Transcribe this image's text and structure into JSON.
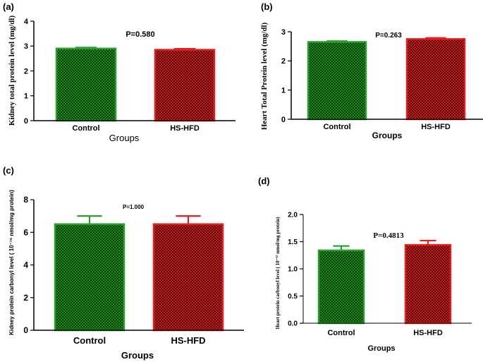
{
  "chart_data": [
    {
      "panel_label": "(a)",
      "type": "bar",
      "categories": [
        "Control",
        "HS-HFD"
      ],
      "values": [
        2.9,
        2.85
      ],
      "errors": [
        0.04,
        0.04
      ],
      "ylabel": "Kidney total protein level (mg/dl)",
      "xlabel": "Groups",
      "ylim": [
        0,
        4
      ],
      "yticks": [
        "0",
        "1",
        "2",
        "3",
        "4"
      ],
      "annotation": "P=0.580"
    },
    {
      "panel_label": "(b)",
      "type": "bar",
      "categories": [
        "Control",
        "HS-HFD"
      ],
      "values": [
        2.65,
        2.75
      ],
      "errors": [
        0.03,
        0.04
      ],
      "ylabel": "Heart Total Protein level  (mg/dl)",
      "xlabel": "Groups",
      "ylim": [
        0,
        3
      ],
      "yticks": [
        "0",
        "1",
        "2",
        "3"
      ],
      "annotation": "P=0.263"
    },
    {
      "panel_label": "(c)",
      "type": "bar",
      "categories": [
        "Control",
        "HS-HFD"
      ],
      "values": [
        6.5,
        6.5
      ],
      "errors": [
        0.5,
        0.5
      ],
      "ylabel": "Kidney protein carbonyl level  ( 10⁻¹⁶ nmol/mg protein)",
      "xlabel": "Groups",
      "ylim": [
        0,
        8
      ],
      "yticks": [
        "0",
        "2",
        "4",
        "6",
        "8"
      ],
      "annotation": "P=1.000"
    },
    {
      "panel_label": "(d)",
      "type": "bar",
      "categories": [
        "Control",
        "HS-HFD"
      ],
      "values": [
        1.34,
        1.44
      ],
      "errors": [
        0.08,
        0.08
      ],
      "ylabel": "Heart protein carbonyl level ( 10⁻¹⁵ nmol/mg protein)",
      "xlabel": "Groups",
      "ylim": [
        0,
        2.0
      ],
      "yticks": [
        "0.0",
        "0.5",
        "1.0",
        "1.5",
        "2.0"
      ],
      "annotation": "P=0.4813"
    }
  ],
  "colors": {
    "control_fill": "#1e8a1e",
    "control_dark": "#073d07",
    "control_edge": "#2ca02c",
    "hfd_fill": "#d01a1a",
    "hfd_dark": "#4a0606",
    "hfd_edge": "#e62020"
  }
}
